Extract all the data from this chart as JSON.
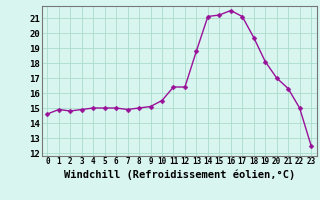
{
  "x": [
    0,
    1,
    2,
    3,
    4,
    5,
    6,
    7,
    8,
    9,
    10,
    11,
    12,
    13,
    14,
    15,
    16,
    17,
    18,
    19,
    20,
    21,
    22,
    23
  ],
  "y": [
    14.6,
    14.9,
    14.8,
    14.9,
    15.0,
    15.0,
    15.0,
    14.9,
    15.0,
    15.1,
    15.5,
    16.4,
    16.4,
    18.8,
    21.1,
    21.2,
    21.5,
    21.1,
    19.7,
    18.1,
    17.0,
    16.3,
    15.0,
    12.5
  ],
  "line_color": "#991199",
  "marker": "D",
  "marker_size": 2.5,
  "linewidth": 1.0,
  "background_color": "#d8f5f0",
  "grid_color": "#aaddcc",
  "xlabel": "Windchill (Refroidissement éolien,°C)",
  "xlim": [
    -0.5,
    23.5
  ],
  "ylim": [
    11.8,
    21.8
  ],
  "yticks": [
    12,
    13,
    14,
    15,
    16,
    17,
    18,
    19,
    20,
    21
  ],
  "xticks": [
    0,
    1,
    2,
    3,
    4,
    5,
    6,
    7,
    8,
    9,
    10,
    11,
    12,
    13,
    14,
    15,
    16,
    17,
    18,
    19,
    20,
    21,
    22,
    23
  ]
}
